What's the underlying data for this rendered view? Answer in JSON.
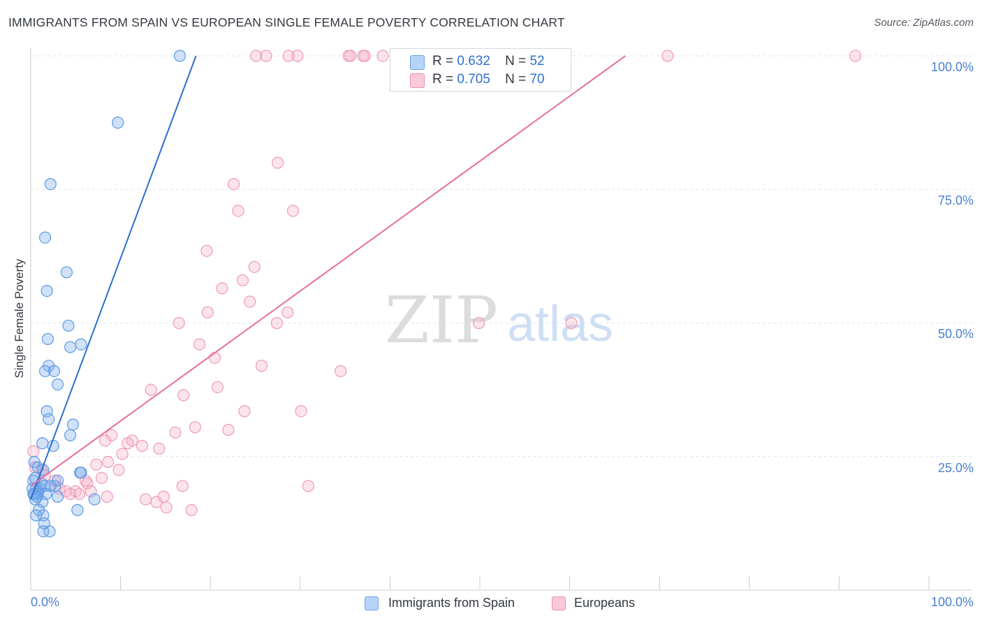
{
  "title": "IMMIGRANTS FROM SPAIN VS EUROPEAN SINGLE FEMALE POVERTY CORRELATION CHART",
  "source": "Source: ZipAtlas.com",
  "watermark": {
    "zip": "ZIP",
    "atlas": "atlas"
  },
  "colors": {
    "blue": "#5b9be3",
    "blue_line": "#2a6fcc",
    "pink": "#f2a3bc",
    "pink_line": "#e56e97",
    "tick_text": "#4a7fd0"
  },
  "legend": {
    "rows": [
      {
        "r_label": "R =",
        "r_value": "0.632",
        "n_label": "N =",
        "n_value": "52"
      },
      {
        "r_label": "R =",
        "r_value": "0.705",
        "n_label": "N =",
        "n_value": "70"
      }
    ]
  },
  "bottom_legend": {
    "series1": "Immigrants from Spain",
    "series2": "Europeans"
  },
  "chart_data": {
    "type": "scatter",
    "title": "IMMIGRANTS FROM SPAIN VS EUROPEAN SINGLE FEMALE POVERTY CORRELATION CHART",
    "xlabel": "",
    "ylabel": "Single Female Poverty",
    "xlim": [
      0,
      100
    ],
    "ylim": [
      0,
      100
    ],
    "x_tick_labels": [
      "0.0%",
      "100.0%"
    ],
    "y_tick_labels": [
      "25.0%",
      "50.0%",
      "75.0%",
      "100.0%"
    ],
    "grid": true,
    "series": [
      {
        "name": "Immigrants from Spain",
        "color": "#5b9be3",
        "R": 0.632,
        "N": 52,
        "trendline": {
          "x0": 0,
          "y0": 17,
          "x1": 18.4,
          "y1": 100
        },
        "points": [
          [
            16.6,
            100
          ],
          [
            9.7,
            87.5
          ],
          [
            2.2,
            76
          ],
          [
            1.6,
            66
          ],
          [
            4.0,
            59.5
          ],
          [
            1.8,
            56
          ],
          [
            4.2,
            49.5
          ],
          [
            1.9,
            47
          ],
          [
            4.4,
            45.5
          ],
          [
            5.6,
            46
          ],
          [
            2.0,
            42
          ],
          [
            1.6,
            41
          ],
          [
            2.6,
            41
          ],
          [
            3.0,
            38.5
          ],
          [
            1.8,
            33.5
          ],
          [
            2.0,
            32
          ],
          [
            4.7,
            31
          ],
          [
            4.4,
            29
          ],
          [
            2.5,
            27
          ],
          [
            1.3,
            27.5
          ],
          [
            0.4,
            24
          ],
          [
            0.8,
            23
          ],
          [
            1.4,
            22.5
          ],
          [
            5.5,
            22
          ],
          [
            5.6,
            22
          ],
          [
            0.5,
            21
          ],
          [
            1.2,
            20
          ],
          [
            0.3,
            20.5
          ],
          [
            2.7,
            19.5
          ],
          [
            1.5,
            19.5
          ],
          [
            0.6,
            19
          ],
          [
            1.0,
            19
          ],
          [
            0.8,
            18.5
          ],
          [
            2.2,
            19.5
          ],
          [
            3.0,
            20.5
          ],
          [
            0.3,
            18
          ],
          [
            0.8,
            18
          ],
          [
            1.7,
            18
          ],
          [
            3.0,
            17.5
          ],
          [
            0.5,
            17
          ],
          [
            1.3,
            16.5
          ],
          [
            7.1,
            17
          ],
          [
            0.9,
            15
          ],
          [
            1.4,
            14
          ],
          [
            5.2,
            15
          ],
          [
            0.6,
            14
          ],
          [
            1.5,
            12.5
          ],
          [
            1.4,
            11
          ],
          [
            2.1,
            11
          ],
          [
            0.4,
            18
          ],
          [
            0.7,
            17.5
          ],
          [
            0.2,
            19
          ]
        ]
      },
      {
        "name": "Europeans",
        "color": "#f2a3bc",
        "R": 0.705,
        "N": 70,
        "trendline": {
          "x0": 0,
          "y0": 19.5,
          "x1": 66.2,
          "y1": 100
        },
        "points": [
          [
            25.1,
            100
          ],
          [
            26.2,
            100
          ],
          [
            28.7,
            100
          ],
          [
            29.7,
            100
          ],
          [
            35.4,
            100
          ],
          [
            35.6,
            100
          ],
          [
            37.0,
            100
          ],
          [
            37.2,
            100
          ],
          [
            39.2,
            100
          ],
          [
            70.9,
            100
          ],
          [
            91.8,
            100
          ],
          [
            27.5,
            80
          ],
          [
            22.6,
            76
          ],
          [
            23.1,
            71
          ],
          [
            29.2,
            71
          ],
          [
            19.6,
            63.5
          ],
          [
            24.9,
            60.5
          ],
          [
            23.6,
            58
          ],
          [
            21.3,
            56.5
          ],
          [
            24.4,
            54
          ],
          [
            19.7,
            52
          ],
          [
            28.6,
            52
          ],
          [
            16.5,
            50
          ],
          [
            27.4,
            50
          ],
          [
            49.9,
            50
          ],
          [
            60.2,
            50
          ],
          [
            18.8,
            46
          ],
          [
            20.5,
            43.5
          ],
          [
            25.7,
            42
          ],
          [
            34.5,
            41
          ],
          [
            20.8,
            38
          ],
          [
            13.4,
            37.5
          ],
          [
            17.0,
            36.5
          ],
          [
            23.8,
            33.5
          ],
          [
            30.1,
            33.5
          ],
          [
            18.3,
            30.5
          ],
          [
            22.0,
            30
          ],
          [
            16.1,
            29.5
          ],
          [
            9.0,
            29
          ],
          [
            8.3,
            28
          ],
          [
            11.3,
            28
          ],
          [
            10.8,
            27.5
          ],
          [
            12.4,
            27
          ],
          [
            14.3,
            26.5
          ],
          [
            10.2,
            25.5
          ],
          [
            0.3,
            26
          ],
          [
            8.6,
            24
          ],
          [
            7.3,
            23.5
          ],
          [
            0.5,
            23
          ],
          [
            1.2,
            22.5
          ],
          [
            9.8,
            22.5
          ],
          [
            1.6,
            21.5
          ],
          [
            7.9,
            21
          ],
          [
            6.1,
            20.5
          ],
          [
            6.3,
            20
          ],
          [
            2.7,
            20.5
          ],
          [
            16.9,
            19.5
          ],
          [
            30.9,
            19.5
          ],
          [
            3.2,
            19
          ],
          [
            5.0,
            18.5
          ],
          [
            6.7,
            18.5
          ],
          [
            3.9,
            18.5
          ],
          [
            4.4,
            18
          ],
          [
            5.4,
            18
          ],
          [
            8.5,
            17.5
          ],
          [
            12.8,
            17
          ],
          [
            14.0,
            16.5
          ],
          [
            14.8,
            17.5
          ],
          [
            15.1,
            15.5
          ],
          [
            17.9,
            15
          ]
        ]
      }
    ]
  }
}
